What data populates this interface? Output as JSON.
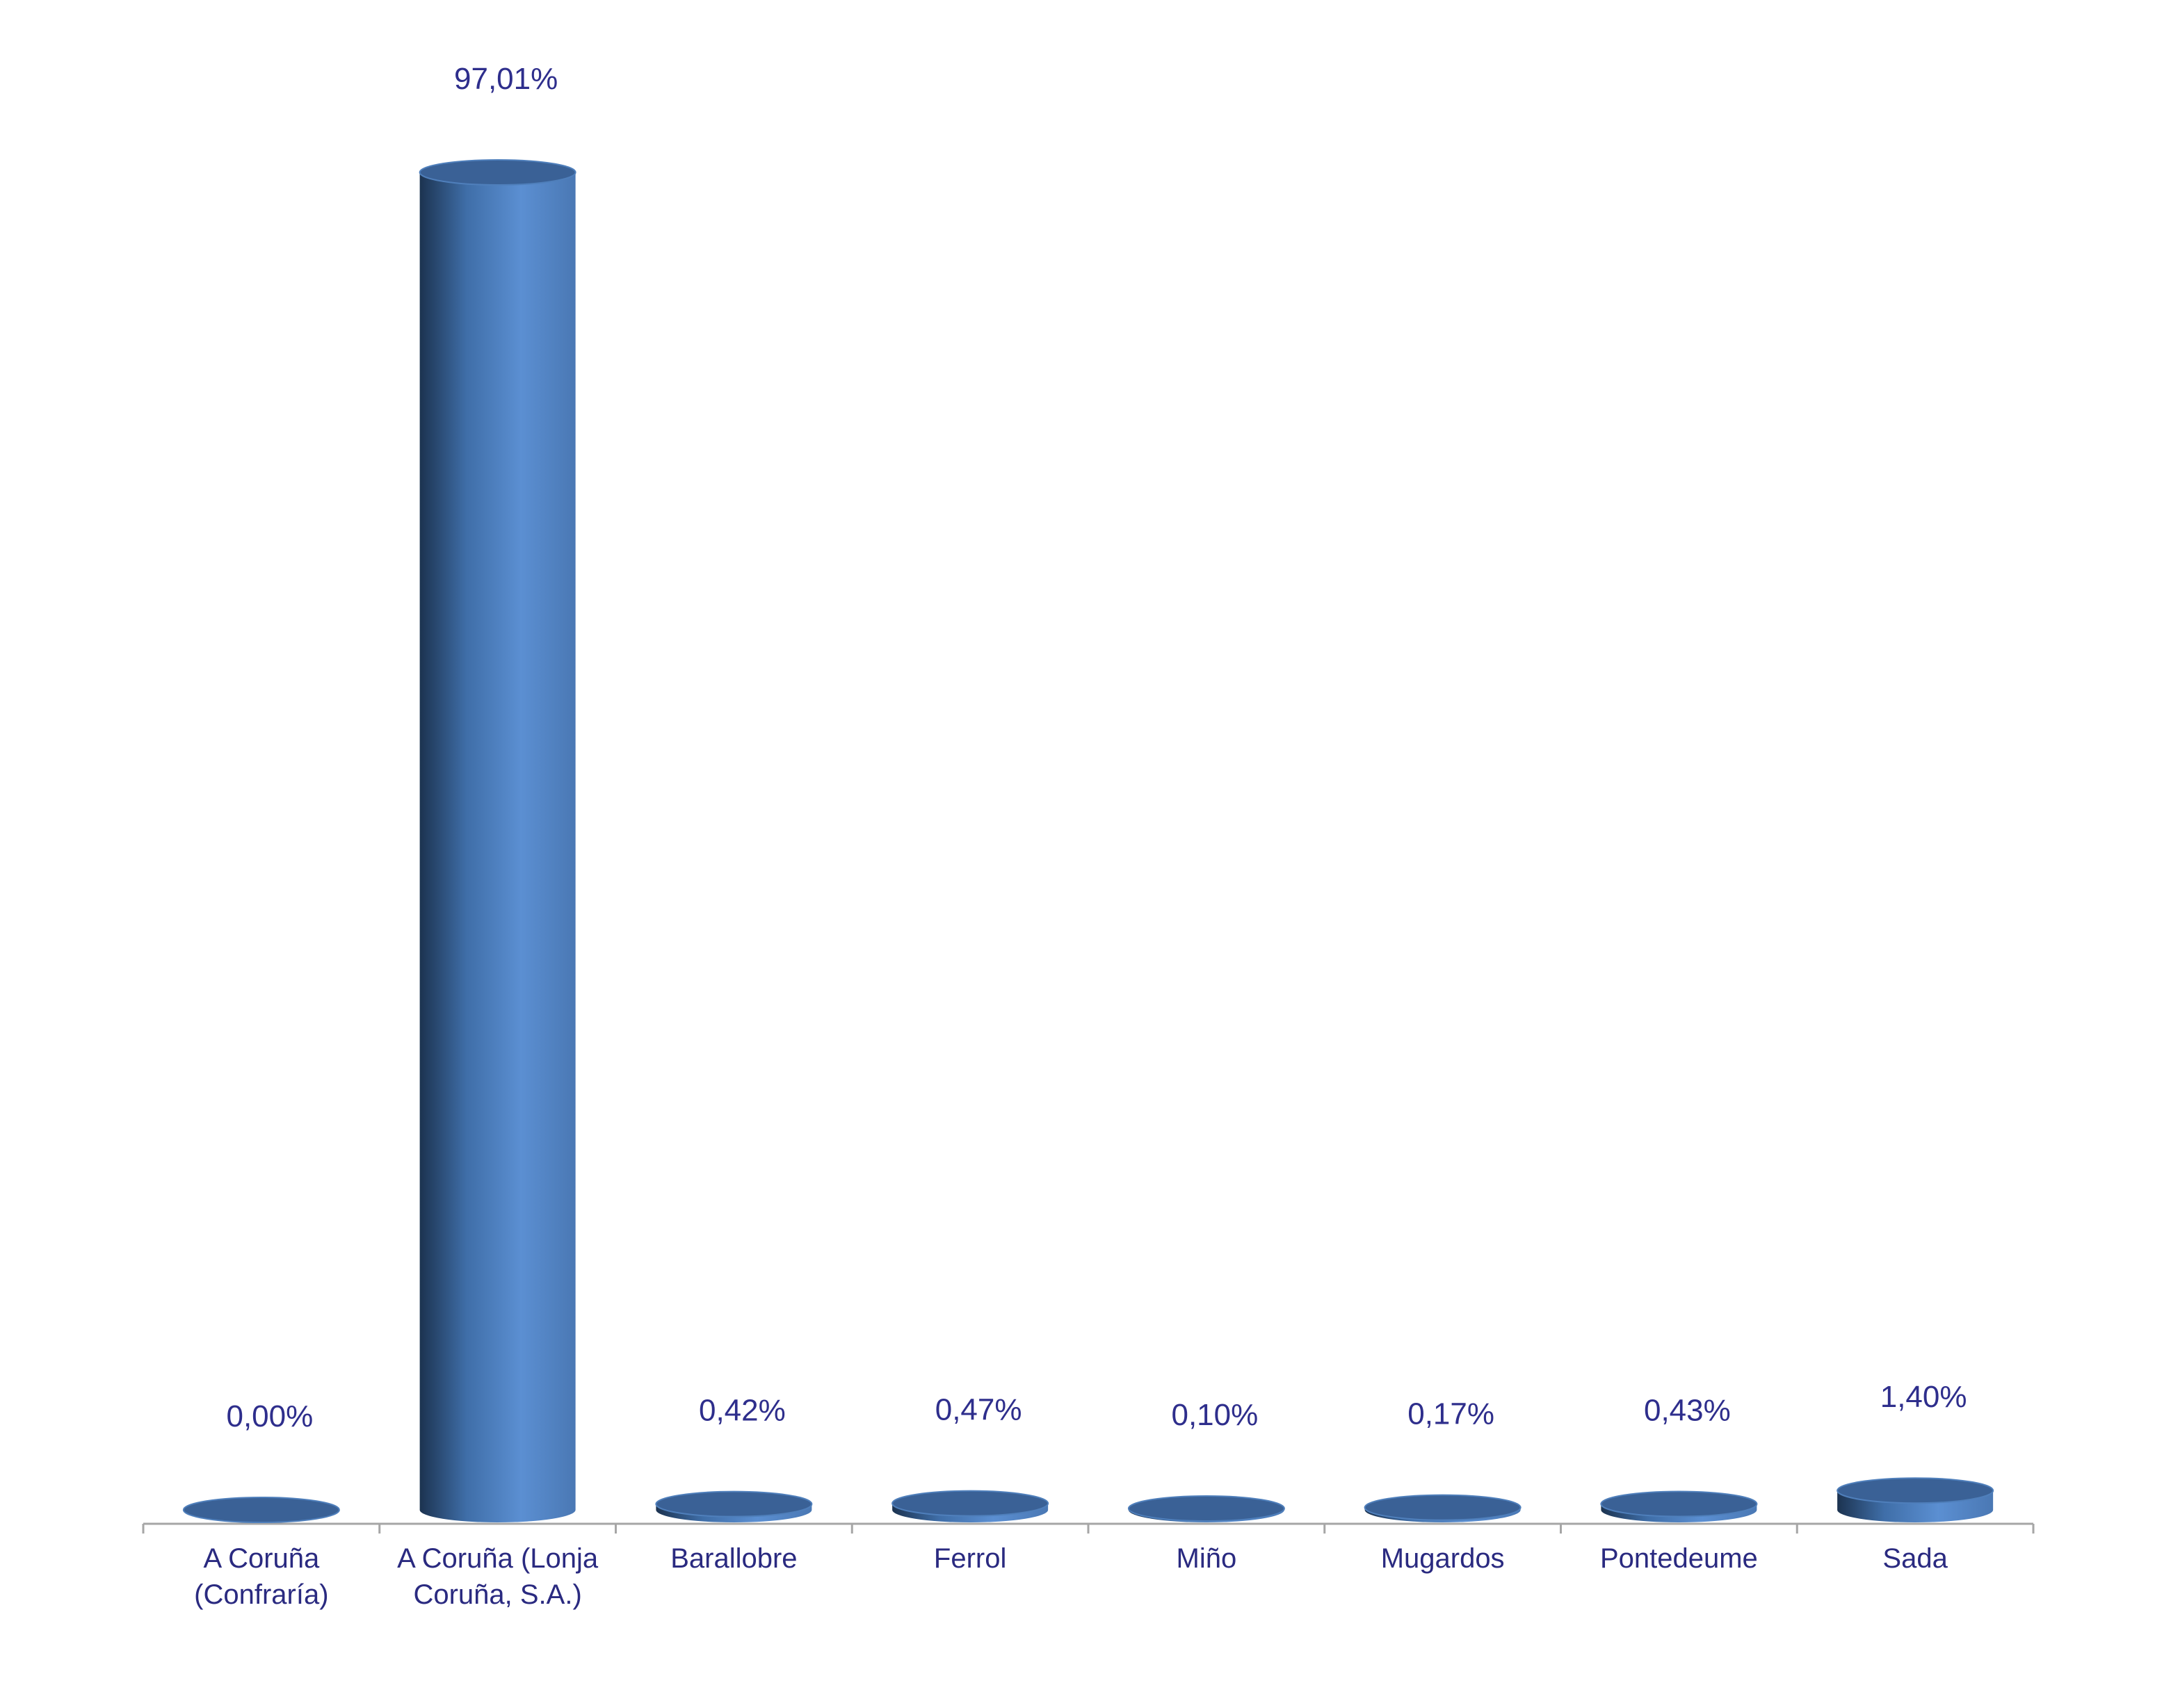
{
  "chart_data": {
    "type": "bar",
    "categories": [
      "A Coruña (Confraría)",
      "A Coruña (Lonja Coruña, S.A.)",
      "Barallobre",
      "Ferrol",
      "Miño",
      "Mugardos",
      "Pontedeume",
      "Sada"
    ],
    "values": [
      0.0,
      97.01,
      0.42,
      0.47,
      0.1,
      0.17,
      0.43,
      1.4
    ],
    "value_labels": [
      "0,00%",
      "97,01%",
      "0,42%",
      "0,47%",
      "0,10%",
      "0,17%",
      "0,43%",
      "1,40%"
    ],
    "color": "#4f81bd"
  }
}
